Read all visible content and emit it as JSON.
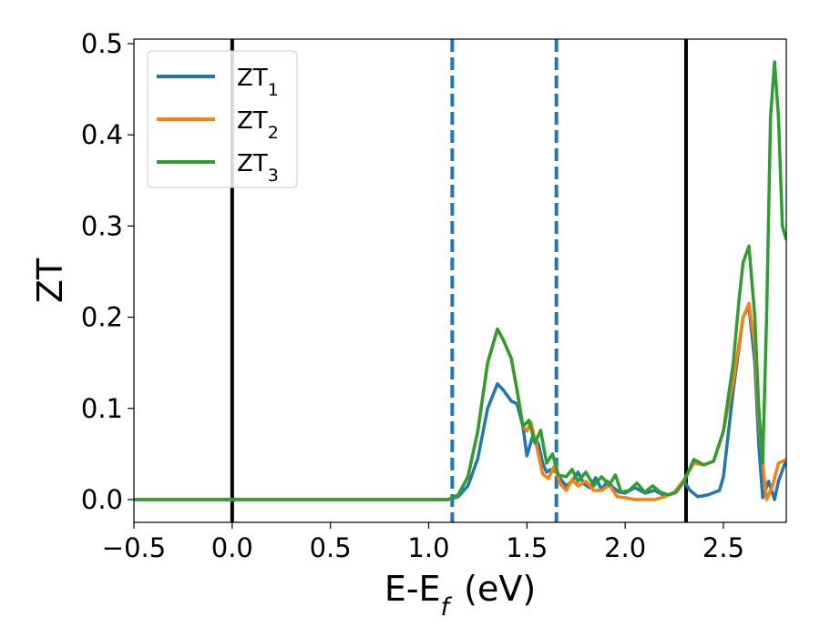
{
  "chart_data": {
    "type": "line",
    "xlabel": "E-E_f (eV)",
    "ylabel": "ZT",
    "xlim": [
      -0.5,
      2.82
    ],
    "ylim": [
      -0.025,
      0.505
    ],
    "x_ticks": [
      -0.5,
      0.0,
      0.5,
      1.0,
      1.5,
      2.0,
      2.5
    ],
    "x_tick_labels": [
      "−0.5",
      "0.0",
      "0.5",
      "1.0",
      "1.5",
      "2.0",
      "2.5"
    ],
    "y_ticks": [
      0.0,
      0.1,
      0.2,
      0.3,
      0.4,
      0.5
    ],
    "y_tick_labels": [
      "0.0",
      "0.1",
      "0.2",
      "0.3",
      "0.4",
      "0.5"
    ],
    "legend_position": "top-left",
    "vertical_lines": [
      {
        "x": 0.0,
        "style": "solid",
        "color": "#000000"
      },
      {
        "x": 1.12,
        "style": "dashed",
        "color": "#1f77b4"
      },
      {
        "x": 1.65,
        "style": "dashed",
        "color": "#1f77b4"
      },
      {
        "x": 2.31,
        "style": "solid",
        "color": "#000000"
      }
    ],
    "series": [
      {
        "name": "ZT",
        "subscript": "1",
        "color": "#1f77b4",
        "points": [
          [
            -0.5,
            0
          ],
          [
            1.0,
            0
          ],
          [
            1.1,
            0
          ],
          [
            1.15,
            0.003
          ],
          [
            1.2,
            0.015
          ],
          [
            1.25,
            0.045
          ],
          [
            1.3,
            0.1
          ],
          [
            1.35,
            0.127
          ],
          [
            1.38,
            0.12
          ],
          [
            1.42,
            0.108
          ],
          [
            1.45,
            0.105
          ],
          [
            1.48,
            0.08
          ],
          [
            1.5,
            0.048
          ],
          [
            1.53,
            0.07
          ],
          [
            1.56,
            0.06
          ],
          [
            1.58,
            0.04
          ],
          [
            1.6,
            0.03
          ],
          [
            1.62,
            0.033
          ],
          [
            1.65,
            0.03
          ],
          [
            1.68,
            0.02
          ],
          [
            1.7,
            0.015
          ],
          [
            1.73,
            0.02
          ],
          [
            1.76,
            0.03
          ],
          [
            1.79,
            0.017
          ],
          [
            1.82,
            0.013
          ],
          [
            1.85,
            0.024
          ],
          [
            1.88,
            0.011
          ],
          [
            1.91,
            0.02
          ],
          [
            1.94,
            0.013
          ],
          [
            1.97,
            0.008
          ],
          [
            2.0,
            0.007
          ],
          [
            2.05,
            0.013
          ],
          [
            2.1,
            0.007
          ],
          [
            2.15,
            0.01
          ],
          [
            2.2,
            0.004
          ],
          [
            2.25,
            0.007
          ],
          [
            2.3,
            0.02
          ],
          [
            2.33,
            0.01
          ],
          [
            2.37,
            0.003
          ],
          [
            2.42,
            0.005
          ],
          [
            2.48,
            0.01
          ],
          [
            2.5,
            0.025
          ],
          [
            2.55,
            0.12
          ],
          [
            2.6,
            0.2
          ],
          [
            2.63,
            0.212
          ],
          [
            2.66,
            0.15
          ],
          [
            2.68,
            0.06
          ],
          [
            2.7,
            0.002
          ],
          [
            2.73,
            0.02
          ],
          [
            2.76,
            0.0
          ],
          [
            2.78,
            0.02
          ],
          [
            2.82,
            0.044
          ]
        ]
      },
      {
        "name": "ZT",
        "subscript": "2",
        "color": "#ff7f0e",
        "points": [
          [
            -0.5,
            0
          ],
          [
            1.0,
            0
          ],
          [
            1.1,
            0
          ],
          [
            1.15,
            0.005
          ],
          [
            1.2,
            0.025
          ],
          [
            1.25,
            0.075
          ],
          [
            1.3,
            0.15
          ],
          [
            1.35,
            0.187
          ],
          [
            1.38,
            0.175
          ],
          [
            1.42,
            0.155
          ],
          [
            1.45,
            0.12
          ],
          [
            1.48,
            0.08
          ],
          [
            1.5,
            0.075
          ],
          [
            1.52,
            0.085
          ],
          [
            1.55,
            0.058
          ],
          [
            1.58,
            0.028
          ],
          [
            1.61,
            0.023
          ],
          [
            1.64,
            0.037
          ],
          [
            1.67,
            0.017
          ],
          [
            1.7,
            0.01
          ],
          [
            1.73,
            0.022
          ],
          [
            1.76,
            0.015
          ],
          [
            1.8,
            0.02
          ],
          [
            1.84,
            0.01
          ],
          [
            1.88,
            0.01
          ],
          [
            1.92,
            0.016
          ],
          [
            1.96,
            0.003
          ],
          [
            2.0,
            0.002
          ],
          [
            2.05,
            0.0
          ],
          [
            2.1,
            0.0
          ],
          [
            2.15,
            0.0
          ],
          [
            2.2,
            0.003
          ],
          [
            2.25,
            0.008
          ],
          [
            2.3,
            0.022
          ],
          [
            2.35,
            0.04
          ],
          [
            2.4,
            0.038
          ],
          [
            2.45,
            0.042
          ],
          [
            2.5,
            0.075
          ],
          [
            2.55,
            0.13
          ],
          [
            2.6,
            0.2
          ],
          [
            2.63,
            0.215
          ],
          [
            2.66,
            0.17
          ],
          [
            2.68,
            0.09
          ],
          [
            2.7,
            0.04
          ],
          [
            2.72,
            0.0
          ],
          [
            2.75,
            0.015
          ],
          [
            2.78,
            0.04
          ],
          [
            2.82,
            0.044
          ]
        ]
      },
      {
        "name": "ZT",
        "subscript": "3",
        "color": "#2ca02c",
        "points": [
          [
            -0.5,
            0
          ],
          [
            1.0,
            0
          ],
          [
            1.1,
            0
          ],
          [
            1.15,
            0.005
          ],
          [
            1.2,
            0.025
          ],
          [
            1.25,
            0.075
          ],
          [
            1.3,
            0.15
          ],
          [
            1.35,
            0.187
          ],
          [
            1.38,
            0.175
          ],
          [
            1.42,
            0.155
          ],
          [
            1.45,
            0.12
          ],
          [
            1.48,
            0.08
          ],
          [
            1.51,
            0.087
          ],
          [
            1.54,
            0.062
          ],
          [
            1.57,
            0.076
          ],
          [
            1.6,
            0.04
          ],
          [
            1.63,
            0.05
          ],
          [
            1.66,
            0.027
          ],
          [
            1.7,
            0.025
          ],
          [
            1.73,
            0.033
          ],
          [
            1.76,
            0.02
          ],
          [
            1.8,
            0.03
          ],
          [
            1.84,
            0.015
          ],
          [
            1.88,
            0.025
          ],
          [
            1.92,
            0.016
          ],
          [
            1.95,
            0.027
          ],
          [
            1.98,
            0.008
          ],
          [
            2.02,
            0.01
          ],
          [
            2.06,
            0.018
          ],
          [
            2.1,
            0.008
          ],
          [
            2.14,
            0.015
          ],
          [
            2.18,
            0.008
          ],
          [
            2.22,
            0.005
          ],
          [
            2.26,
            0.008
          ],
          [
            2.3,
            0.02
          ],
          [
            2.35,
            0.044
          ],
          [
            2.4,
            0.038
          ],
          [
            2.45,
            0.042
          ],
          [
            2.5,
            0.075
          ],
          [
            2.55,
            0.15
          ],
          [
            2.58,
            0.22
          ],
          [
            2.6,
            0.26
          ],
          [
            2.63,
            0.278
          ],
          [
            2.66,
            0.2
          ],
          [
            2.68,
            0.1
          ],
          [
            2.7,
            0.04
          ],
          [
            2.72,
            0.2
          ],
          [
            2.74,
            0.42
          ],
          [
            2.76,
            0.48
          ],
          [
            2.78,
            0.42
          ],
          [
            2.8,
            0.3
          ],
          [
            2.82,
            0.285
          ]
        ]
      }
    ]
  }
}
